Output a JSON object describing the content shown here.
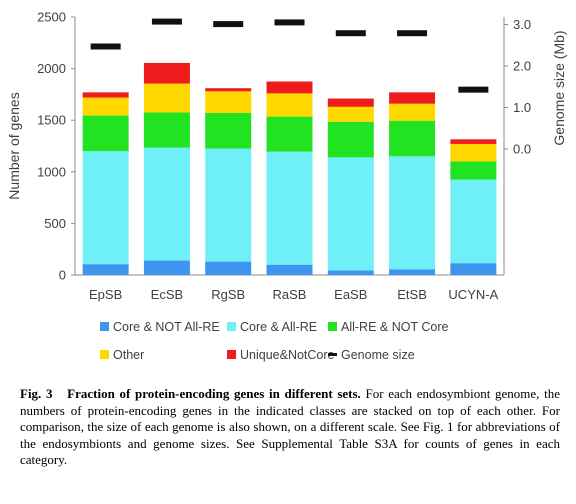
{
  "chart_data": {
    "type": "bar",
    "stacked": true,
    "categories": [
      "EpSB",
      "EcSB",
      "RgSB",
      "RaSB",
      "EaSB",
      "EtSB",
      "UCYN-A"
    ],
    "series": [
      {
        "name": "Core & NOT All-RE",
        "color": "#3e95f0",
        "values": [
          105,
          140,
          130,
          100,
          45,
          55,
          115
        ]
      },
      {
        "name": "Core & All-RE",
        "color": "#6ff0f8",
        "values": [
          1095,
          1095,
          1095,
          1095,
          1095,
          1095,
          810
        ]
      },
      {
        "name": "All-RE & NOT Core",
        "color": "#22e322",
        "values": [
          345,
          340,
          345,
          340,
          345,
          345,
          175
        ]
      },
      {
        "name": "Other",
        "color": "#ffd800",
        "values": [
          175,
          280,
          210,
          225,
          145,
          165,
          170
        ]
      },
      {
        "name": "Unique&NotCore",
        "color": "#ee1c1c",
        "values": [
          50,
          200,
          30,
          115,
          80,
          110,
          45
        ]
      }
    ],
    "genome_size": {
      "name": "Genome size",
      "color": "#111111",
      "values": [
        2.47,
        3.07,
        3.01,
        3.05,
        2.79,
        2.79,
        1.43
      ]
    },
    "ylabel": "Number of genes",
    "y2label": "Genome size (Mb)",
    "ylim": [
      0,
      2500
    ],
    "yticks": [
      "0",
      "500",
      "1000",
      "1500",
      "2000",
      "2500"
    ],
    "y2ticks": [
      "0.0",
      "1.0",
      "2.0",
      "3.0"
    ],
    "legend_position": "bottom",
    "grid": false
  },
  "caption": {
    "label": "Fig. 3",
    "title": "Fraction of protein-encoding genes in different sets.",
    "body": "For each endosymbiont genome, the numbers of protein-encoding genes in the indicated classes are stacked on top of each other. For comparison, the size of each genome is also shown, on a different scale. See Fig. 1 for abbreviations of the endosymbionts and genome sizes. See Supplemental Table S3A for counts of genes in each category."
  }
}
